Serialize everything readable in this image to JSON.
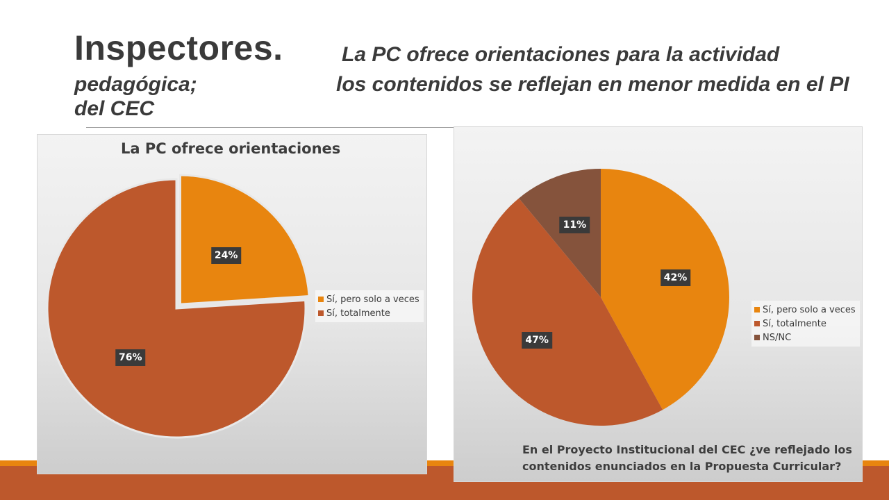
{
  "slide": {
    "title_main": "Inspectores",
    "title_main_dot": ".",
    "subtitle_line1": "La PC ofrece orientaciones para la actividad",
    "subtitle_line2a": "pedagógica;",
    "subtitle_line2b": "los contenidos se reflejan en menor medida en el PI",
    "subtitle_line3": "del CEC"
  },
  "colors": {
    "orange": "#E8850F",
    "rust": "#BD582C",
    "brown": "#85533C",
    "label_bg": "#3a3a3a"
  },
  "chart_data": [
    {
      "type": "pie",
      "title": "La PC ofrece orientaciones",
      "legend_position": "right",
      "categories": [
        "Sí, pero solo a veces",
        "Sí, totalmente"
      ],
      "values": [
        24,
        76
      ],
      "labels": [
        "24%",
        "76%"
      ],
      "colors": [
        "#E8850F",
        "#BD582C"
      ],
      "exploded": [
        true,
        false
      ]
    },
    {
      "type": "pie",
      "title": "En el Proyecto Institucional del CEC ¿ve reflejado los contenidos enunciados en la Propuesta Curricular?",
      "legend_position": "right",
      "categories": [
        "Sí, pero solo a veces",
        "Sí, totalmente",
        "NS/NC"
      ],
      "values": [
        42,
        47,
        11
      ],
      "labels": [
        "42%",
        "47%",
        "11%"
      ],
      "colors": [
        "#E8850F",
        "#BD582C",
        "#85533C"
      ],
      "exploded": [
        false,
        false,
        false
      ]
    }
  ]
}
